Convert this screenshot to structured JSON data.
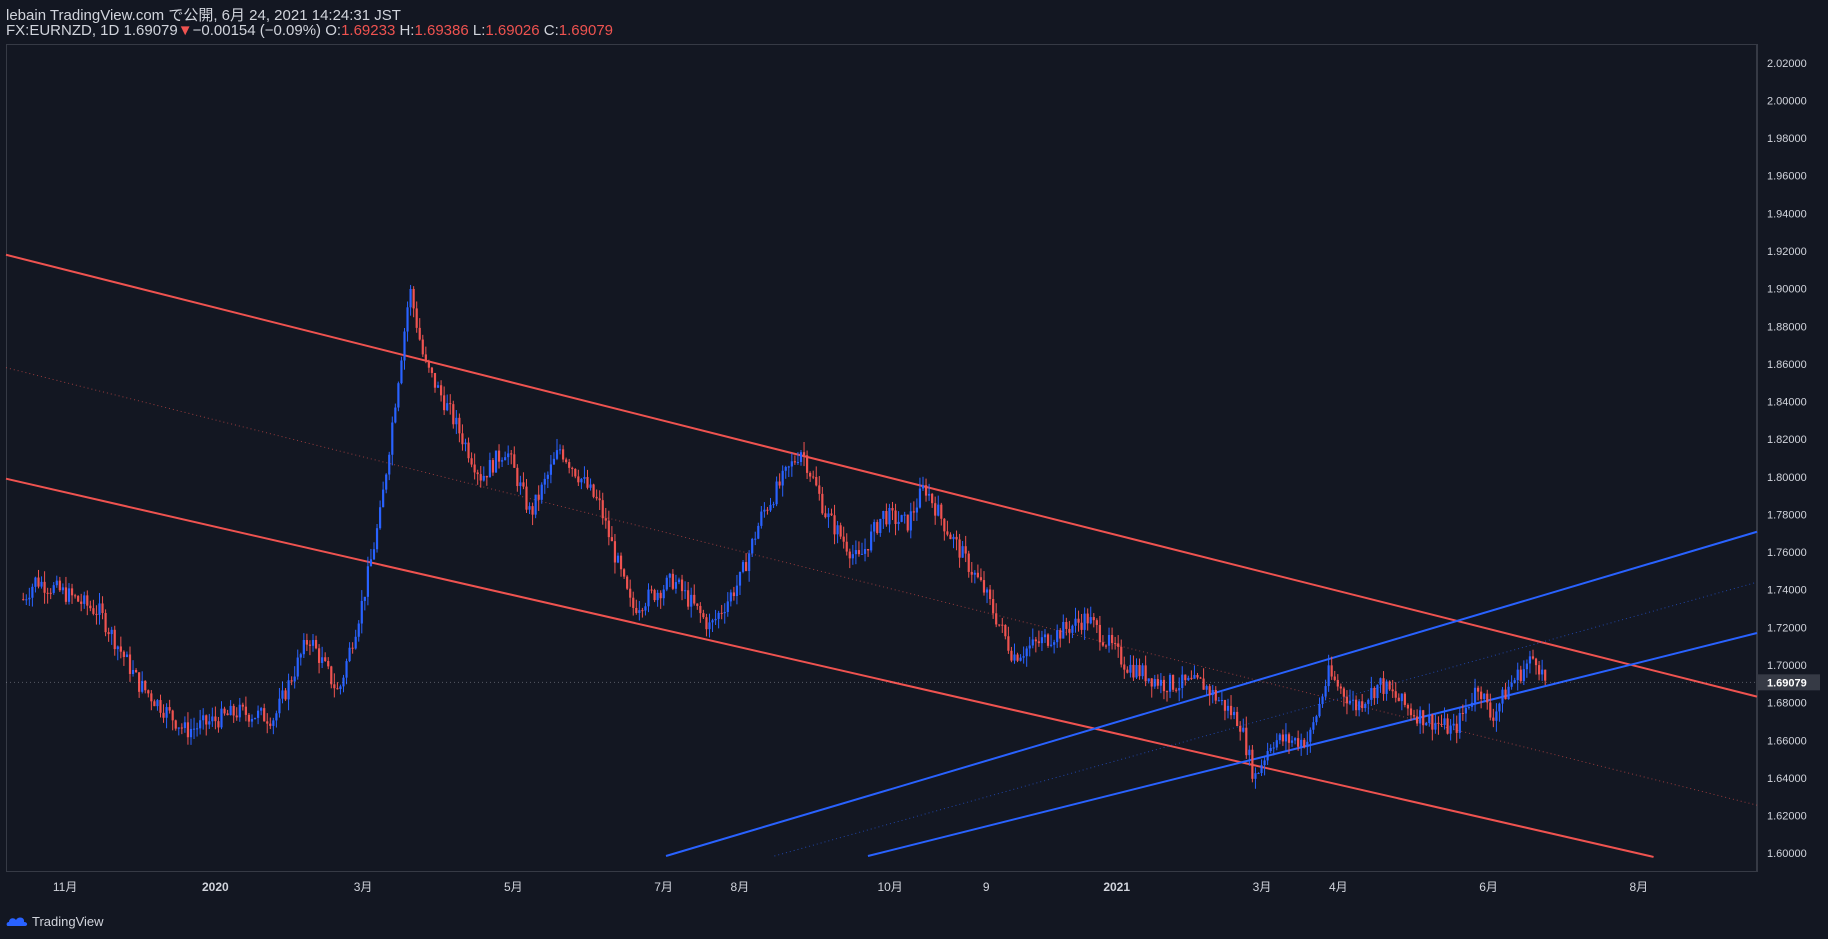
{
  "header": {
    "line1": "lebain TradingView.com で公開, 6月 24, 2021 14:24:31 JST",
    "symbol": "FX:EURNZD, 1D",
    "last": "1.69079",
    "arrow": "▼",
    "change": "−0.00154 (−0.09%)",
    "o_label": "O:",
    "o_value": "1.69233",
    "h_label": "H:",
    "h_value": "1.69386",
    "l_label": "L:",
    "l_value": "1.69026",
    "c_label": "C:",
    "c_value": "1.69079"
  },
  "footer": {
    "brand": "TradingView"
  },
  "colors": {
    "background": "#131722",
    "up": "#2962ff",
    "down": "#ef5350",
    "axis_text": "#d1d4dc",
    "grid": "#363a45"
  },
  "chart_data": {
    "type": "candlestick",
    "symbol": "FX:EURNZD",
    "timeframe": "1D",
    "ylim": [
      1.59,
      2.03
    ],
    "y_ticks": [
      "2.02000",
      "2.00000",
      "1.98000",
      "1.96000",
      "1.94000",
      "1.92000",
      "1.90000",
      "1.88000",
      "1.86000",
      "1.84000",
      "1.82000",
      "1.80000",
      "1.78000",
      "1.76000",
      "1.74000",
      "1.72000",
      "1.70000",
      "1.68000",
      "1.66000",
      "1.64000",
      "1.62000",
      "1.60000"
    ],
    "x_ticks": [
      {
        "label": "11月",
        "date": "2019-11-01"
      },
      {
        "label": "2020",
        "date": "2020-01-01"
      },
      {
        "label": "3月",
        "date": "2020-03-01"
      },
      {
        "label": "5月",
        "date": "2020-05-01"
      },
      {
        "label": "7月",
        "date": "2020-07-01"
      },
      {
        "label": "8月",
        "date": "2020-08-01"
      },
      {
        "label": "10月",
        "date": "2020-10-01"
      },
      {
        "label": "9",
        "date": "2020-11-09"
      },
      {
        "label": "2021",
        "date": "2021-01-01"
      },
      {
        "label": "3月",
        "date": "2021-03-01"
      },
      {
        "label": "4月",
        "date": "2021-04-01"
      },
      {
        "label": "6月",
        "date": "2021-06-01"
      },
      {
        "label": "8月",
        "date": "2021-08-01"
      }
    ],
    "last_price": "1.69079",
    "price_path": [
      {
        "date": "2019-10-15",
        "close": 1.735
      },
      {
        "date": "2019-10-20",
        "close": 1.745
      },
      {
        "date": "2019-11-01",
        "close": 1.738
      },
      {
        "date": "2019-11-15",
        "close": 1.728
      },
      {
        "date": "2019-12-01",
        "close": 1.69
      },
      {
        "date": "2019-12-20",
        "close": 1.665
      },
      {
        "date": "2020-01-10",
        "close": 1.675
      },
      {
        "date": "2020-01-25",
        "close": 1.672
      },
      {
        "date": "2020-02-08",
        "close": 1.715
      },
      {
        "date": "2020-02-20",
        "close": 1.685
      },
      {
        "date": "2020-03-01",
        "close": 1.735
      },
      {
        "date": "2020-03-08",
        "close": 1.78
      },
      {
        "date": "2020-03-15",
        "close": 1.85
      },
      {
        "date": "2020-03-20",
        "close": 1.9
      },
      {
        "date": "2020-03-26",
        "close": 1.86
      },
      {
        "date": "2020-04-05",
        "close": 1.835
      },
      {
        "date": "2020-04-18",
        "close": 1.8
      },
      {
        "date": "2020-04-28",
        "close": 1.815
      },
      {
        "date": "2020-05-08",
        "close": 1.78
      },
      {
        "date": "2020-05-20",
        "close": 1.815
      },
      {
        "date": "2020-06-05",
        "close": 1.785
      },
      {
        "date": "2020-06-18",
        "close": 1.73
      },
      {
        "date": "2020-07-05",
        "close": 1.745
      },
      {
        "date": "2020-07-20",
        "close": 1.72
      },
      {
        "date": "2020-08-01",
        "close": 1.745
      },
      {
        "date": "2020-08-10",
        "close": 1.78
      },
      {
        "date": "2020-08-26",
        "close": 1.815
      },
      {
        "date": "2020-09-05",
        "close": 1.78
      },
      {
        "date": "2020-09-18",
        "close": 1.755
      },
      {
        "date": "2020-09-28",
        "close": 1.78
      },
      {
        "date": "2020-10-08",
        "close": 1.775
      },
      {
        "date": "2020-10-15",
        "close": 1.795
      },
      {
        "date": "2020-10-25",
        "close": 1.77
      },
      {
        "date": "2020-11-08",
        "close": 1.74
      },
      {
        "date": "2020-11-20",
        "close": 1.705
      },
      {
        "date": "2020-12-05",
        "close": 1.715
      },
      {
        "date": "2020-12-20",
        "close": 1.725
      },
      {
        "date": "2021-01-05",
        "close": 1.7
      },
      {
        "date": "2021-01-20",
        "close": 1.69
      },
      {
        "date": "2021-02-05",
        "close": 1.69
      },
      {
        "date": "2021-02-20",
        "close": 1.67
      },
      {
        "date": "2021-02-26",
        "close": 1.64
      },
      {
        "date": "2021-03-05",
        "close": 1.66
      },
      {
        "date": "2021-03-20",
        "close": 1.66
      },
      {
        "date": "2021-03-28",
        "close": 1.695
      },
      {
        "date": "2021-04-08",
        "close": 1.678
      },
      {
        "date": "2021-04-18",
        "close": 1.69
      },
      {
        "date": "2021-05-01",
        "close": 1.675
      },
      {
        "date": "2021-05-18",
        "close": 1.665
      },
      {
        "date": "2021-05-28",
        "close": 1.69
      },
      {
        "date": "2021-06-02",
        "close": 1.672
      },
      {
        "date": "2021-06-10",
        "close": 1.69
      },
      {
        "date": "2021-06-20",
        "close": 1.705
      },
      {
        "date": "2021-06-24",
        "close": 1.691
      }
    ],
    "drawings": [
      {
        "type": "trendline",
        "color": "#ef5350",
        "style": "solid",
        "from": {
          "date": "2019-10-08",
          "price": 1.918
        },
        "to": {
          "date": "2021-09-18",
          "price": 1.6832
        }
      },
      {
        "type": "trendline",
        "color": "#ef5350",
        "style": "solid",
        "from": {
          "date": "2019-10-08",
          "price": 1.799
        },
        "to": {
          "date": "2021-08-07",
          "price": 1.598
        }
      },
      {
        "type": "trendline",
        "color": "#ef5350",
        "style": "dotted",
        "from": {
          "date": "2019-10-08",
          "price": 1.858
        },
        "to": {
          "date": "2021-09-18",
          "price": 1.6255
        }
      },
      {
        "type": "trendline",
        "color": "#2962ff",
        "style": "solid",
        "from": {
          "date": "2020-07-02",
          "price": 1.5985
        },
        "to": {
          "date": "2021-09-18",
          "price": 1.7708
        }
      },
      {
        "type": "trendline",
        "color": "#2962ff",
        "style": "solid",
        "from": {
          "date": "2020-09-22",
          "price": 1.5985
        },
        "to": {
          "date": "2021-09-18",
          "price": 1.717
        }
      },
      {
        "type": "trendline",
        "color": "#2962ff",
        "style": "dotted",
        "from": {
          "date": "2020-08-15",
          "price": 1.5985
        },
        "to": {
          "date": "2021-09-18",
          "price": 1.744
        }
      }
    ]
  }
}
